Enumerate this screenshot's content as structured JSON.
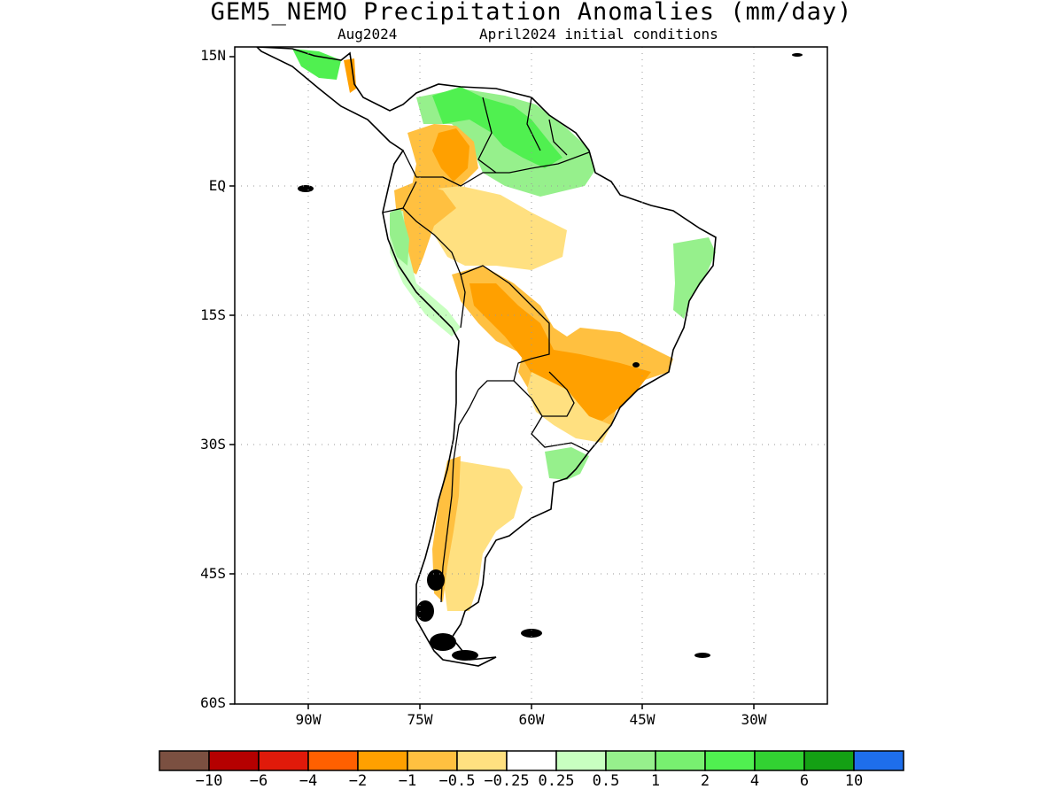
{
  "title": "GEM5_NEMO Precipitation Anomalies (mm/day)",
  "subtitle_left": "Aug2024",
  "subtitle_right": "April2024 initial conditions",
  "map": {
    "lat_ticks": [
      "15N",
      "EQ",
      "15S",
      "30S",
      "45S",
      "60S"
    ],
    "lon_ticks": [
      "90W",
      "75W",
      "60W",
      "45W",
      "30W"
    ],
    "lat_range": [
      -60,
      15
    ],
    "lon_range": [
      -100,
      -20
    ],
    "grid": "dotted"
  },
  "colorbar": {
    "colors": [
      "#7b5041",
      "#b50000",
      "#e01a0a",
      "#ff6000",
      "#ffa000",
      "#ffc040",
      "#ffe080",
      "#ffffff",
      "#c8ffc0",
      "#96f08c",
      "#78f070",
      "#50f050",
      "#32d232",
      "#14a014",
      "#1e6eeb"
    ],
    "labels": [
      "−10",
      "−6",
      "−4",
      "−2",
      "−1",
      "−0.5",
      "−0.25",
      "0.25",
      "0.5",
      "1",
      "2",
      "4",
      "6",
      "10"
    ]
  },
  "anomaly_regions": [
    {
      "name": "caribbean-wet",
      "level": "1"
    },
    {
      "name": "venezuela-wet",
      "level": "2"
    },
    {
      "name": "central-america-dry",
      "level": "-1"
    },
    {
      "name": "colombia-dry",
      "level": "-1"
    },
    {
      "name": "amazon-dry",
      "level": "-0.5"
    },
    {
      "name": "bolivia-dry",
      "level": "-1"
    },
    {
      "name": "brazil-southeast-dry",
      "level": "-2"
    },
    {
      "name": "argentina-dry",
      "level": "-0.5"
    },
    {
      "name": "andes-south-dry",
      "level": "-1"
    },
    {
      "name": "ne-brazil-wet",
      "level": "1"
    },
    {
      "name": "peru-coast-wet",
      "level": "0.5"
    },
    {
      "name": "uruguay-wet",
      "level": "1"
    }
  ]
}
